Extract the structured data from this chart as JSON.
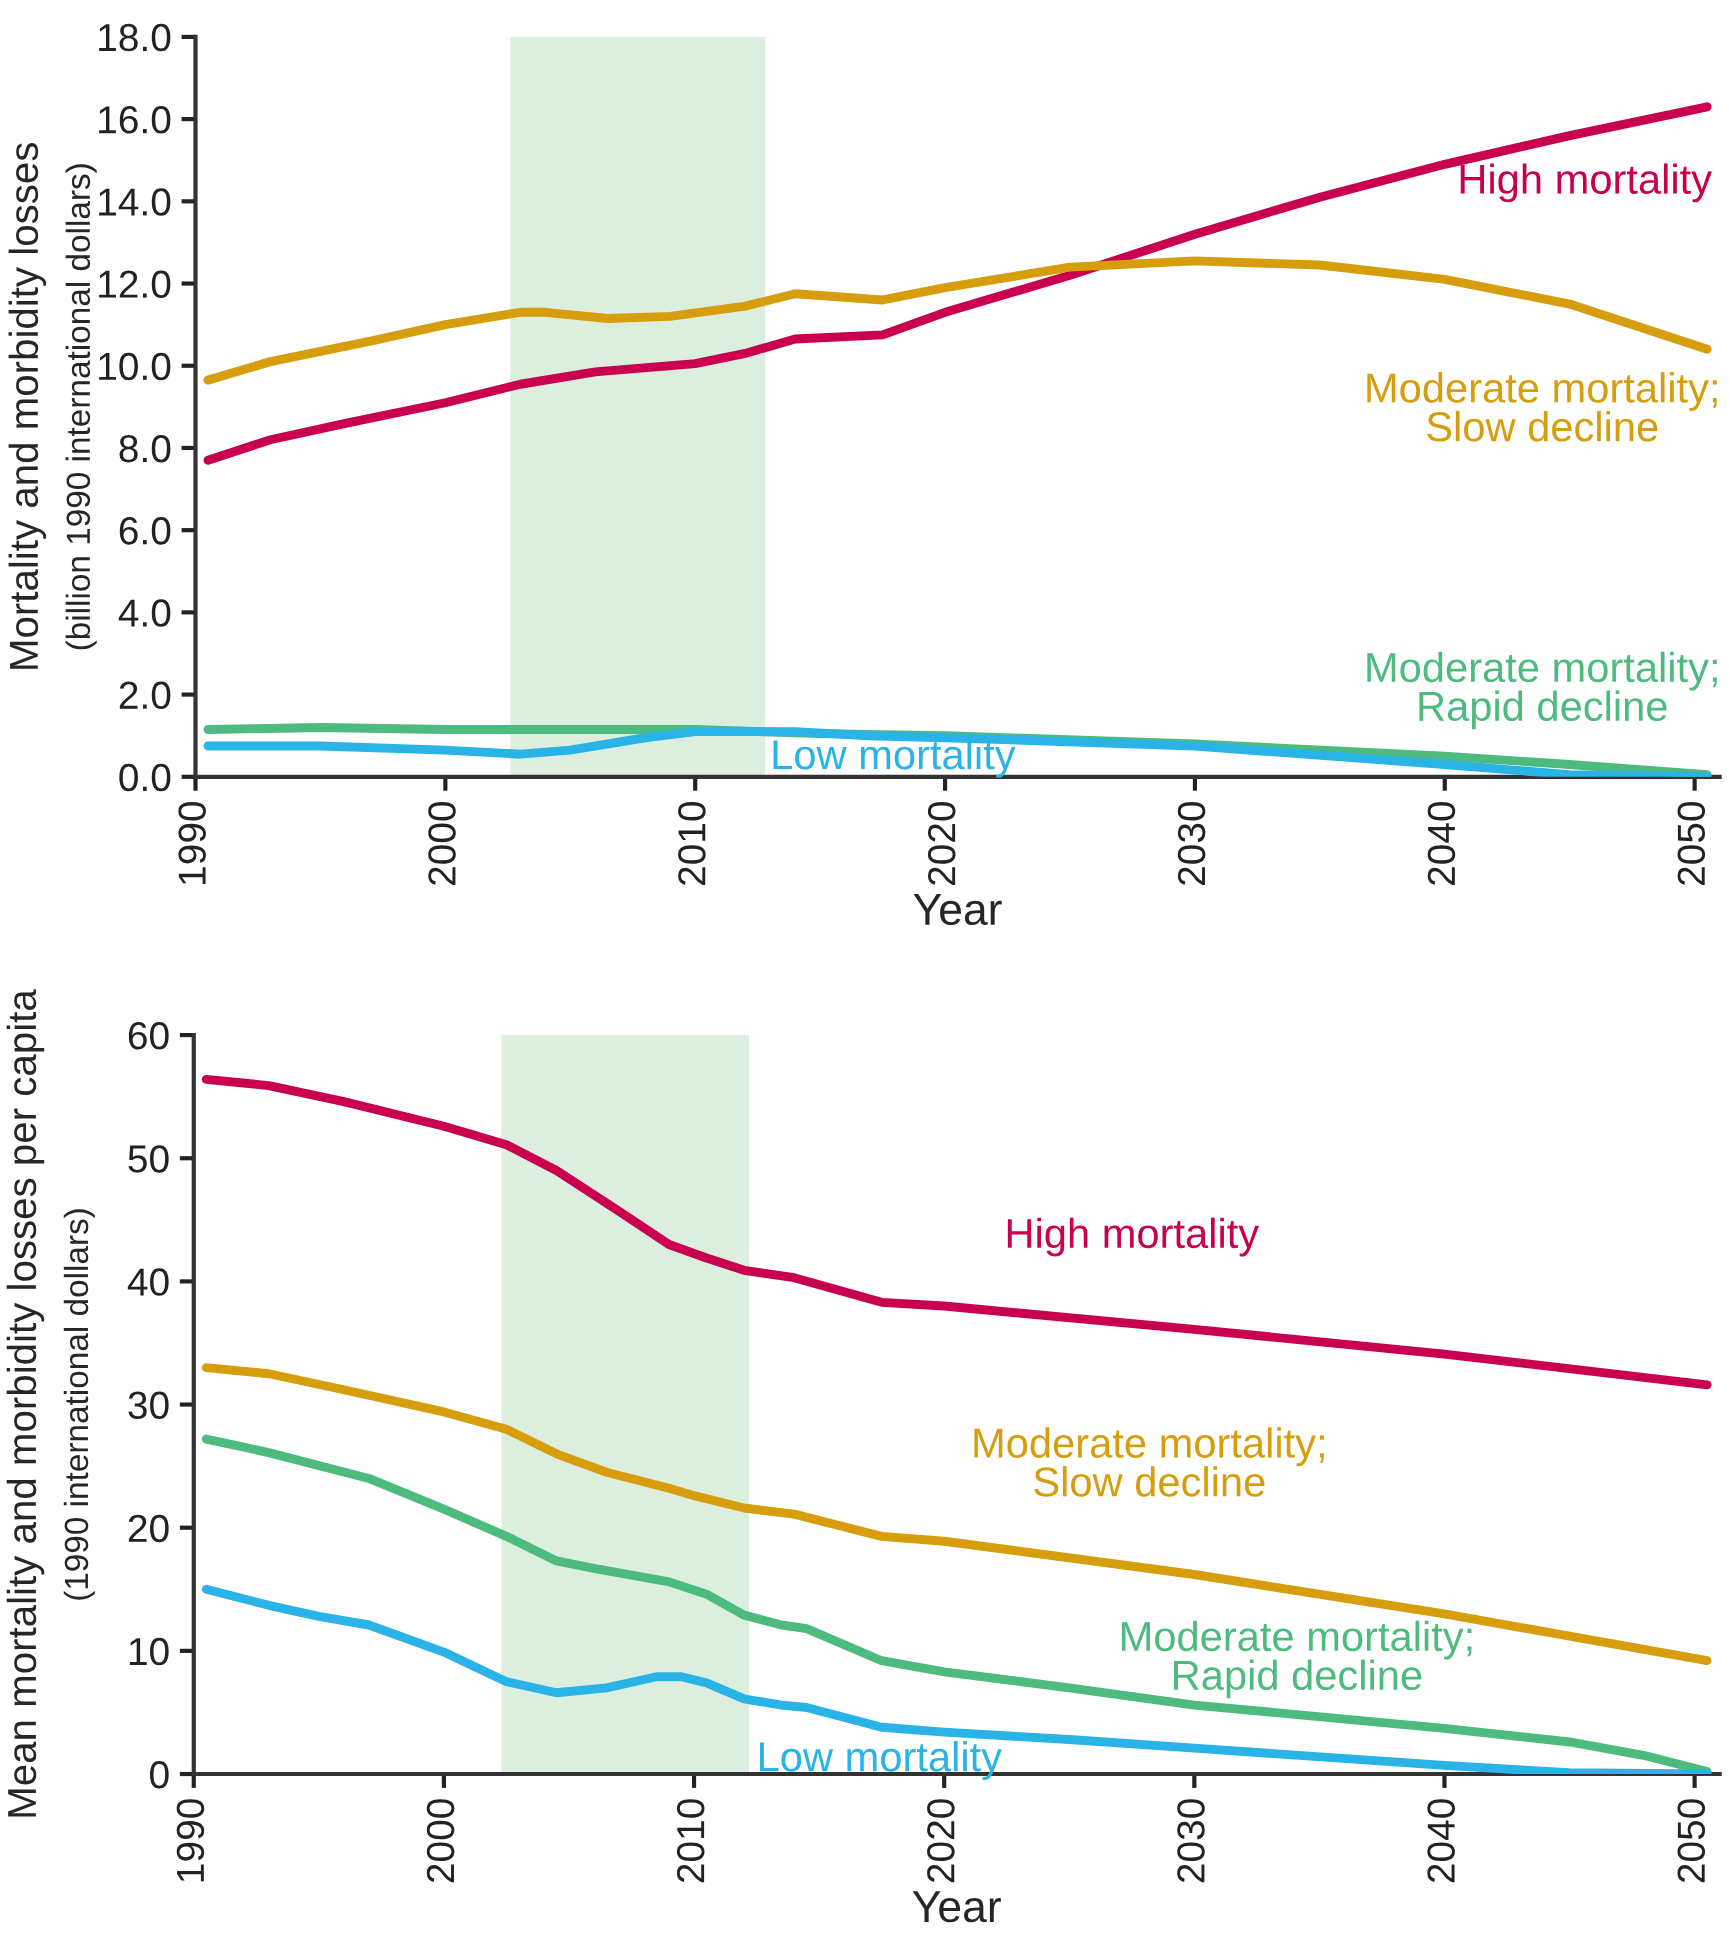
{
  "chart_data": [
    {
      "type": "line",
      "xlabel": "Year",
      "ylabel": "Mortality and morbidity losses\n(billion 1990 international dollars)",
      "xlim": [
        1990,
        2051
      ],
      "xticks": [
        1990,
        2000,
        2010,
        2020,
        2030,
        2040,
        2050
      ],
      "ylim": [
        0,
        18
      ],
      "yticks": [
        {
          "value": 0,
          "label": "0.0"
        },
        {
          "value": 2,
          "label": "2.0"
        },
        {
          "value": 4,
          "label": "4.0"
        },
        {
          "value": 6,
          "label": "6.0"
        },
        {
          "value": 8,
          "label": "8.0"
        },
        {
          "value": 10,
          "label": "10.0"
        },
        {
          "value": 12,
          "label": "12.0"
        },
        {
          "value": 14,
          "label": "14.0"
        },
        {
          "value": 16,
          "label": "16.0"
        },
        {
          "value": 18,
          "label": "18.0"
        }
      ],
      "grid": false,
      "legend": false,
      "bands": [
        {
          "axis": "x",
          "from": 2002.6,
          "to": 2012.8,
          "color": "#dcefdf"
        }
      ],
      "series": [
        {
          "name": "High mortality",
          "color": "#c8004f",
          "x": [
            1990.5,
            1993,
            1996,
            2000,
            2003,
            2006,
            2010,
            2012,
            2014,
            2017.5,
            2020,
            2025,
            2030,
            2035,
            2040,
            2045,
            2050.5
          ],
          "values": [
            7.7,
            8.2,
            8.6,
            9.1,
            9.55,
            9.85,
            10.05,
            10.3,
            10.65,
            10.75,
            11.3,
            12.2,
            13.2,
            14.1,
            14.9,
            15.6,
            16.3
          ]
        },
        {
          "name": "Moderate mortality;\nSlow decline",
          "color": "#d69e0c",
          "x": [
            1990.5,
            1993,
            1997,
            2000,
            2003,
            2004,
            2006.5,
            2009,
            2012,
            2014,
            2017.5,
            2020,
            2025,
            2030,
            2035,
            2040,
            2045,
            2050.5
          ],
          "values": [
            9.65,
            10.1,
            10.6,
            11.0,
            11.3,
            11.3,
            11.15,
            11.2,
            11.45,
            11.75,
            11.6,
            11.9,
            12.4,
            12.55,
            12.45,
            12.1,
            11.5,
            10.4
          ]
        },
        {
          "name": "Moderate mortality;\nRapid decline",
          "color": "#4cbb7d",
          "x": [
            1990.5,
            1995,
            2000,
            2005,
            2010,
            2015,
            2020,
            2030,
            2040,
            2045,
            2050.5
          ],
          "values": [
            1.15,
            1.2,
            1.15,
            1.15,
            1.15,
            1.05,
            1.0,
            0.8,
            0.5,
            0.3,
            0.05
          ]
        },
        {
          "name": "Low mortality",
          "color": "#29b3e6",
          "x": [
            1990.5,
            1995,
            2000,
            2003,
            2005,
            2008,
            2010,
            2014,
            2017,
            2020,
            2030,
            2040,
            2045,
            2050.5
          ],
          "values": [
            0.75,
            0.75,
            0.65,
            0.55,
            0.65,
            0.95,
            1.1,
            1.1,
            1.0,
            0.95,
            0.75,
            0.3,
            0.05,
            0.0
          ]
        }
      ]
    },
    {
      "type": "line",
      "xlabel": "Year",
      "ylabel": "Mean mortality and morbidity losses per capita\n(1990 international dollars)",
      "xlim": [
        1990,
        2051
      ],
      "xticks": [
        1990,
        2000,
        2010,
        2020,
        2030,
        2040,
        2050
      ],
      "ylim": [
        0,
        60
      ],
      "yticks": [
        0,
        10,
        20,
        30,
        40,
        50,
        60
      ],
      "grid": false,
      "legend": false,
      "bands": [
        {
          "axis": "x",
          "from": 2002.3,
          "to": 2012.2,
          "color": "#dcefdf"
        }
      ],
      "series": [
        {
          "name": "High mortality",
          "color": "#c8004f",
          "x": [
            1990.5,
            1993,
            1996,
            2000,
            2002.5,
            2004.5,
            2007,
            2009,
            2010.5,
            2012,
            2014,
            2017.5,
            2020,
            2030,
            2040,
            2050.5
          ],
          "values": [
            56.4,
            55.9,
            54.6,
            52.6,
            51.1,
            49.0,
            45.7,
            43.0,
            41.9,
            40.9,
            40.3,
            38.3,
            38.0,
            36.1,
            34.1,
            31.6
          ]
        },
        {
          "name": "Moderate mortality;\nSlow decline",
          "color": "#d69e0c",
          "x": [
            1990.5,
            1993,
            1996,
            2000,
            2002.5,
            2004.5,
            2006.5,
            2009,
            2010,
            2012,
            2014,
            2017.5,
            2020,
            2030,
            2040,
            2050.5
          ],
          "values": [
            33.0,
            32.5,
            31.2,
            29.4,
            28.0,
            26.0,
            24.5,
            23.2,
            22.6,
            21.6,
            21.1,
            19.3,
            18.9,
            16.2,
            13.0,
            9.2
          ]
        },
        {
          "name": "Moderate mortality;\nRapid decline",
          "color": "#4cbb7d",
          "x": [
            1990.5,
            1993,
            1997,
            2000,
            2002.5,
            2004.5,
            2006,
            2009,
            2010.5,
            2012,
            2013.5,
            2014.5,
            2017.5,
            2020,
            2025,
            2030,
            2040,
            2045,
            2048,
            2050.5
          ],
          "values": [
            27.2,
            26.1,
            24.0,
            21.5,
            19.3,
            17.3,
            16.7,
            15.6,
            14.6,
            12.9,
            12.1,
            11.8,
            9.2,
            8.3,
            7.0,
            5.6,
            3.7,
            2.6,
            1.5,
            0.2
          ]
        },
        {
          "name": "Low mortality",
          "color": "#29b3e6",
          "x": [
            1990.5,
            1993,
            1995,
            1997,
            2000,
            2002.5,
            2004.5,
            2006.5,
            2008.5,
            2009.5,
            2010.5,
            2012,
            2013.5,
            2014.5,
            2017.5,
            2020,
            2025,
            2030,
            2040,
            2045,
            2050.5
          ],
          "values": [
            15.0,
            13.7,
            12.8,
            12.1,
            9.9,
            7.5,
            6.6,
            7.0,
            7.9,
            7.9,
            7.4,
            6.1,
            5.6,
            5.4,
            3.8,
            3.4,
            2.8,
            2.1,
            0.7,
            0.1,
            0.0
          ]
        }
      ]
    }
  ]
}
